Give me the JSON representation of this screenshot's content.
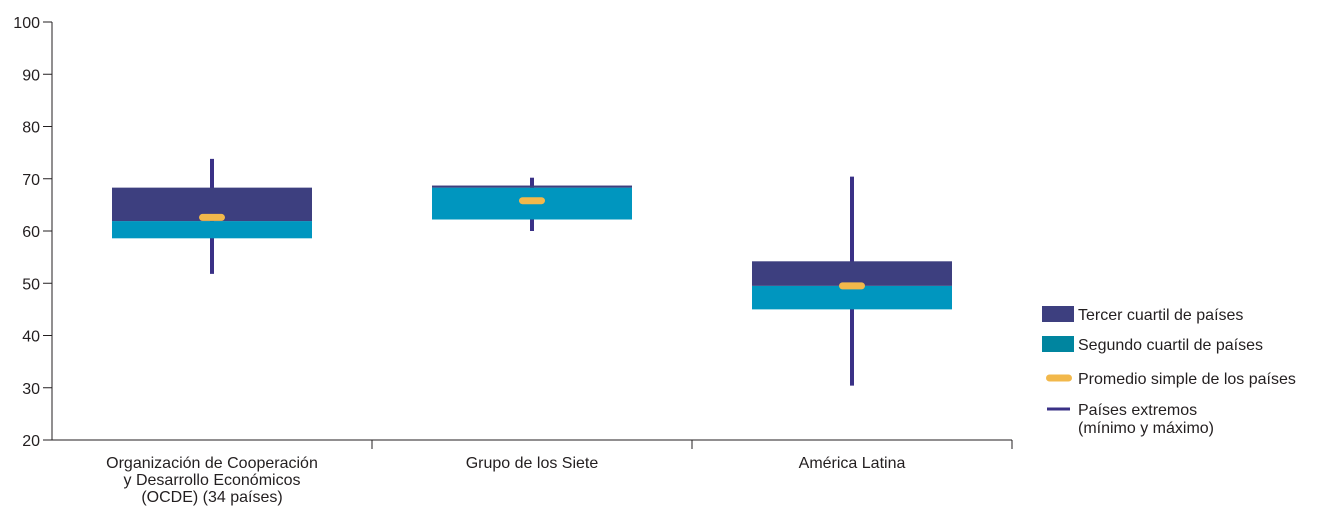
{
  "chart_data": {
    "type": "box",
    "title": "",
    "xlabel": "",
    "ylabel": "",
    "ylim": [
      20,
      100
    ],
    "yticks": [
      20,
      30,
      40,
      50,
      60,
      70,
      80,
      90,
      100
    ],
    "grid": false,
    "legend_position": "right",
    "categories": [
      [
        "Organización de Cooperación",
        "y Desarrollo Económicos",
        "(OCDE) (34 países)"
      ],
      [
        "Grupo de los Siete"
      ],
      [
        "América Latina"
      ]
    ],
    "series": [
      {
        "key": "q3",
        "name": "Tercer cuartil de países",
        "values": [
          [
            61.9,
            68.3
          ],
          [
            68.3,
            68.7
          ],
          [
            49.5,
            54.2
          ]
        ]
      },
      {
        "key": "q2",
        "name": "Segundo cuartil de países",
        "values": [
          [
            58.6,
            61.9
          ],
          [
            62.2,
            68.3
          ],
          [
            45.0,
            49.5
          ]
        ]
      },
      {
        "key": "mean",
        "name": "Promedio simple de los países",
        "values": [
          62.6,
          65.8,
          49.5
        ]
      },
      {
        "key": "extremes",
        "name": [
          "Países extremos",
          "(mínimo y máximo)"
        ],
        "values": [
          [
            51.8,
            73.8
          ],
          [
            60.0,
            70.2
          ],
          [
            30.4,
            70.4
          ]
        ]
      }
    ],
    "colors": {
      "q3": "#3d3f7f",
      "q2": "#0096bf",
      "q2_legend": "#00859f",
      "mean": "#f2b84b",
      "extremes": "#3a3186",
      "axis": "#231f20"
    }
  }
}
